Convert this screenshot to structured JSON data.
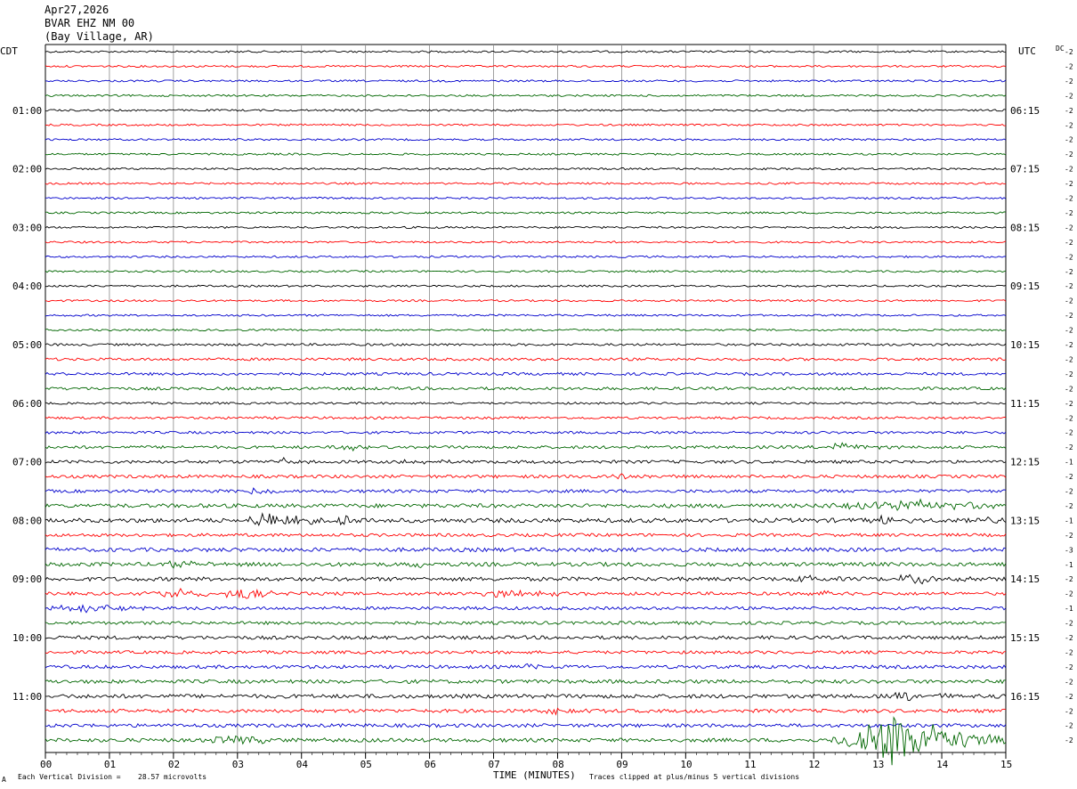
{
  "header": {
    "date": "Apr27,2026",
    "station": "BVAR EHZ NM 00",
    "location": "(Bay Village, AR)"
  },
  "left_tz": "CDT",
  "right_tz": "UTC",
  "dc_label": "DC",
  "chart_data": {
    "type": "line",
    "xlabel": "TIME (MINUTES)",
    "x_ticks": [
      "00",
      "01",
      "02",
      "03",
      "04",
      "05",
      "06",
      "07",
      "08",
      "09",
      "10",
      "11",
      "12",
      "13",
      "14",
      "15"
    ],
    "xlim": [
      0,
      15
    ],
    "rows": 48,
    "minutes_per_row": 15,
    "row_colors": [
      "#000000",
      "#ff0000",
      "#0000cc",
      "#006600"
    ],
    "left_hour_labels": [
      "01:00",
      "02:00",
      "03:00",
      "04:00",
      "05:00",
      "06:00",
      "07:00",
      "08:00",
      "09:00",
      "10:00",
      "11:00"
    ],
    "right_hour_labels": [
      "06:15",
      "07:15",
      "08:15",
      "09:15",
      "10:15",
      "11:15",
      "12:15",
      "13:15",
      "14:15",
      "15:15",
      "16:15"
    ],
    "dc_offsets": [
      -2,
      -2,
      -2,
      -2,
      -2,
      -2,
      -2,
      -2,
      -2,
      -2,
      -2,
      -2,
      -2,
      -2,
      -2,
      -2,
      -2,
      -2,
      -2,
      -2,
      -2,
      -2,
      -2,
      -2,
      -2,
      -2,
      -2,
      -2,
      -1,
      -2,
      -2,
      -2,
      -1,
      -2,
      -3,
      -1,
      -2,
      -2,
      -1,
      -2,
      -2,
      -2,
      -2,
      -2,
      -2,
      -2,
      -2,
      -2
    ],
    "row_noise": [
      1,
      1,
      1,
      1,
      1,
      1,
      1,
      1,
      1,
      1,
      1,
      1,
      1,
      1,
      1,
      1,
      1,
      1,
      1,
      1,
      1.2,
      1.4,
      1.4,
      1.5,
      1.1,
      1.2,
      1.3,
      1.5,
      1.6,
      1.6,
      1.6,
      2,
      2.2,
      1.6,
      2,
      2,
      2,
      1.6,
      1.6,
      1.6,
      1.8,
      1.6,
      1.7,
      1.9,
      2,
      1.8,
      1.8,
      1.9
    ],
    "events": [
      {
        "row": 27,
        "minute": 12.4,
        "amp": 5,
        "dur": 0.4
      },
      {
        "row": 27,
        "minute": 4.8,
        "amp": 4,
        "dur": 0.3
      },
      {
        "row": 28,
        "minute": 3.7,
        "amp": 4,
        "dur": 0.2
      },
      {
        "row": 28,
        "minute": 5.8,
        "amp": 3,
        "dur": 0.3
      },
      {
        "row": 29,
        "minute": 9.0,
        "amp": 3,
        "dur": 0.5
      },
      {
        "row": 30,
        "minute": 3.3,
        "amp": 3,
        "dur": 0.3
      },
      {
        "row": 31,
        "minute": 13.5,
        "amp": 6,
        "dur": 1.5
      },
      {
        "row": 32,
        "minute": 3.5,
        "amp": 9,
        "dur": 0.6
      },
      {
        "row": 32,
        "minute": 4.7,
        "amp": 4,
        "dur": 0.4
      },
      {
        "row": 32,
        "minute": 13.1,
        "amp": 5,
        "dur": 0.3
      },
      {
        "row": 32,
        "minute": 14.8,
        "amp": 4,
        "dur": 0.3
      },
      {
        "row": 35,
        "minute": 2.1,
        "amp": 4,
        "dur": 0.4
      },
      {
        "row": 35,
        "minute": 5.8,
        "amp": 4,
        "dur": 0.2
      },
      {
        "row": 36,
        "minute": 13.6,
        "amp": 6,
        "dur": 0.4
      },
      {
        "row": 36,
        "minute": 11.9,
        "amp": 4,
        "dur": 0.3
      },
      {
        "row": 37,
        "minute": 2.1,
        "amp": 5,
        "dur": 0.8
      },
      {
        "row": 37,
        "minute": 3.1,
        "amp": 6,
        "dur": 0.4
      },
      {
        "row": 37,
        "minute": 7.3,
        "amp": 5,
        "dur": 0.6
      },
      {
        "row": 37,
        "minute": 12.2,
        "amp": 4,
        "dur": 0.5
      },
      {
        "row": 38,
        "minute": 0.6,
        "amp": 5,
        "dur": 0.6
      },
      {
        "row": 42,
        "minute": 7.6,
        "amp": 4,
        "dur": 0.3
      },
      {
        "row": 44,
        "minute": 13.5,
        "amp": 5,
        "dur": 0.4
      },
      {
        "row": 45,
        "minute": 8.1,
        "amp": 4,
        "dur": 0.4
      },
      {
        "row": 47,
        "minute": 13.2,
        "amp": 30,
        "dur": 1.0
      },
      {
        "row": 47,
        "minute": 13.8,
        "amp": 6,
        "dur": 0.6
      },
      {
        "row": 47,
        "minute": 3.0,
        "amp": 4,
        "dur": 0.8
      }
    ]
  },
  "footer": {
    "scale_label": "Each Vertical Division =",
    "scale_value": "28.57 microvolts",
    "clip_note": "Traces clipped at plus/minus 5 vertical divisions",
    "corner_mark": "A"
  }
}
